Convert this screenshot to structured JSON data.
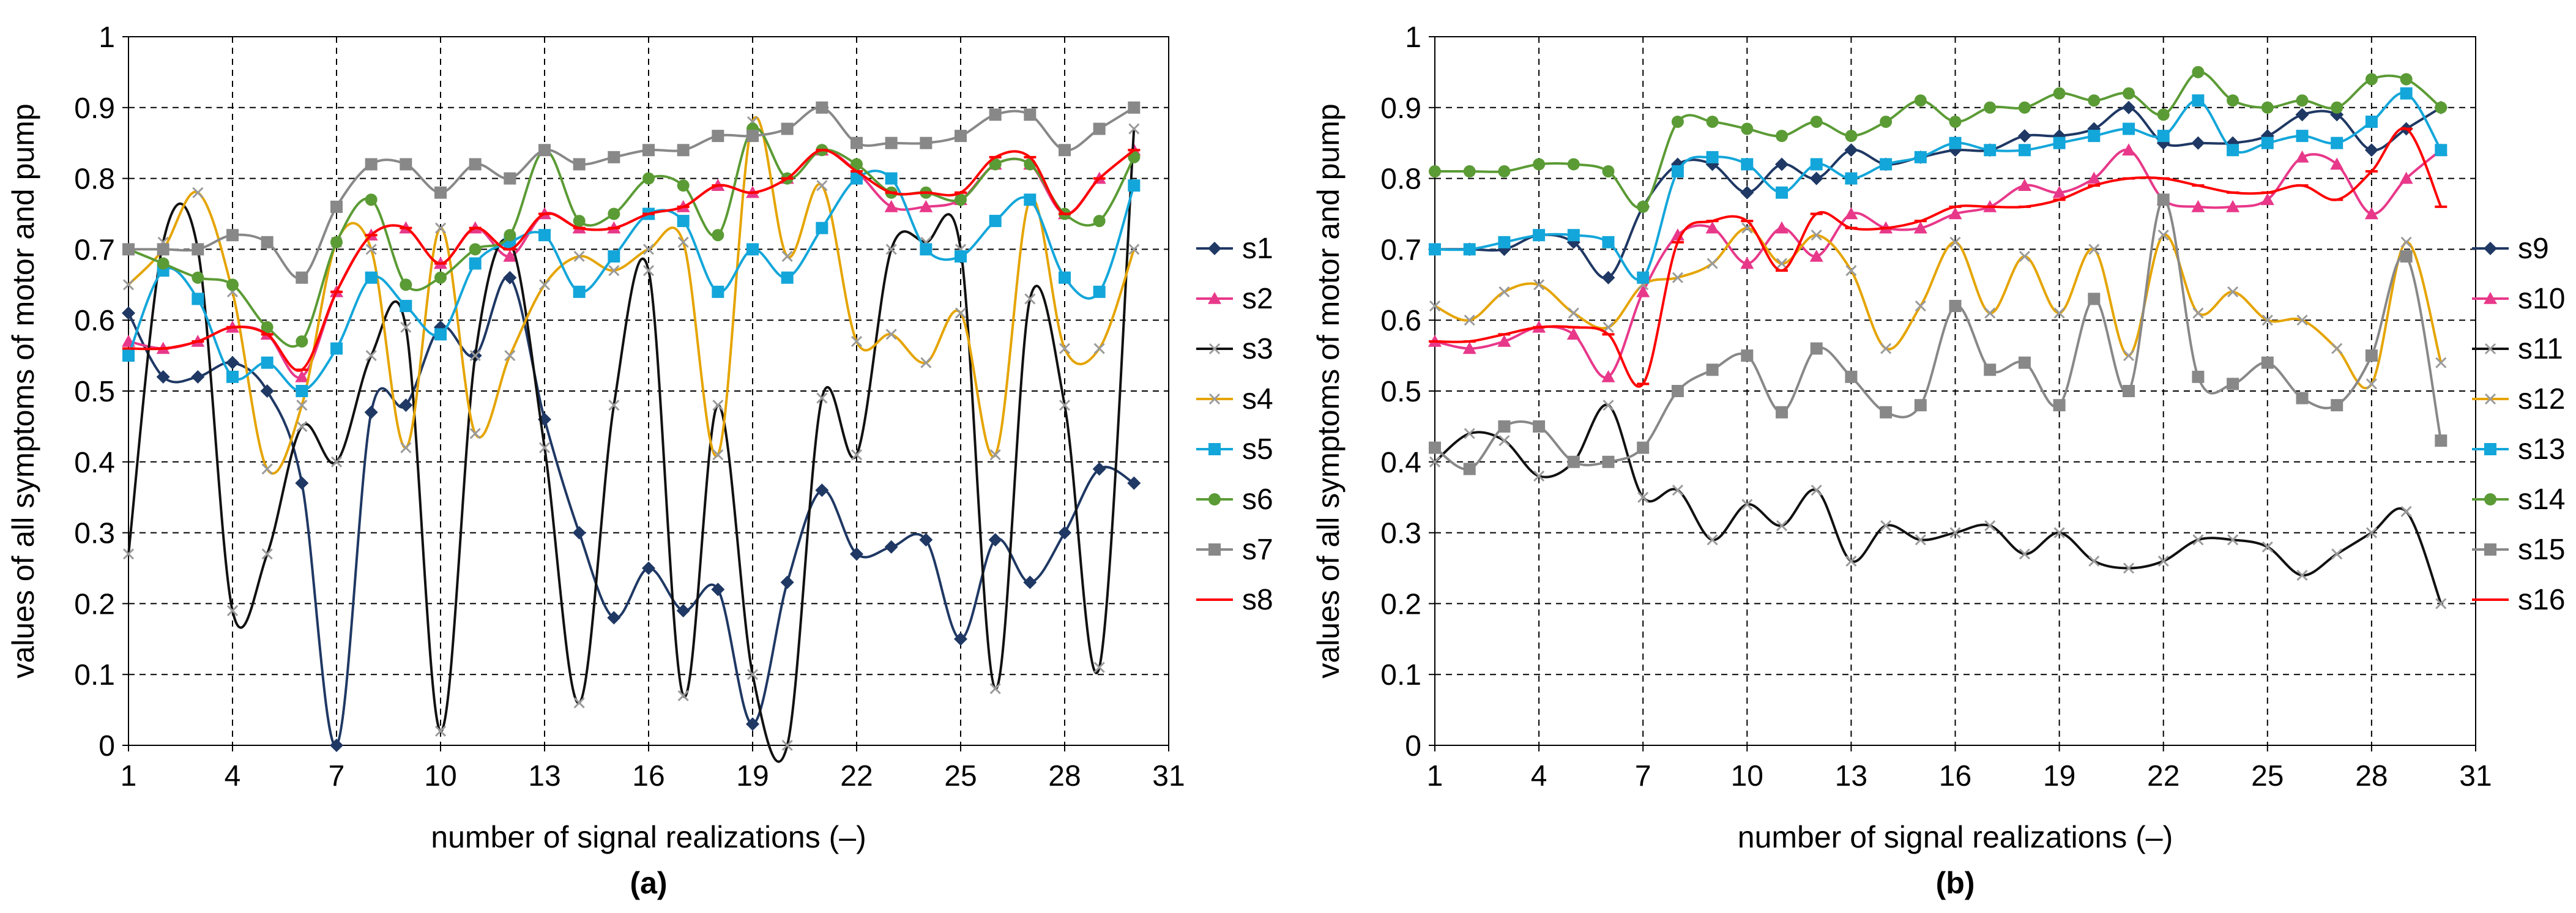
{
  "chart_data": [
    {
      "type": "line",
      "panel": "(a)",
      "xlabel": "number of signal realizations (–)",
      "ylabel": "values of all symptoms of motor and pump",
      "xlim": [
        1,
        31
      ],
      "ylim": [
        0,
        1
      ],
      "xticks": [
        1,
        4,
        7,
        10,
        13,
        16,
        19,
        22,
        25,
        28,
        31
      ],
      "yticks": [
        0,
        0.1,
        0.2,
        0.3,
        0.4,
        0.5,
        0.6,
        0.7,
        0.8,
        0.9,
        1
      ],
      "ytick_labels": [
        "0",
        "0.1",
        "0.2",
        "0.3",
        "0.4",
        "0.5",
        "0.6",
        "0.7",
        "0.8",
        "0.9",
        "1"
      ],
      "grid": true,
      "legend_position": "right",
      "x": [
        1,
        2,
        3,
        4,
        5,
        6,
        7,
        8,
        9,
        10,
        11,
        12,
        13,
        14,
        15,
        16,
        17,
        18,
        19,
        20,
        21,
        22,
        23,
        24,
        25,
        26,
        27,
        28,
        29,
        30
      ],
      "series": [
        {
          "name": "s1",
          "color": "#1F3864",
          "marker": "diamond",
          "values": [
            0.61,
            0.52,
            0.52,
            0.54,
            0.5,
            0.37,
            0.0,
            0.47,
            0.48,
            0.59,
            0.55,
            0.66,
            0.46,
            0.3,
            0.18,
            0.25,
            0.19,
            0.22,
            0.03,
            0.23,
            0.36,
            0.27,
            0.28,
            0.29,
            0.15,
            0.29,
            0.23,
            0.3,
            0.39,
            0.37
          ]
        },
        {
          "name": "s2",
          "color": "#E8388A",
          "marker": "triangle",
          "values": [
            0.57,
            0.56,
            0.57,
            0.59,
            0.58,
            0.52,
            0.64,
            0.72,
            0.73,
            0.68,
            0.73,
            0.69,
            0.75,
            0.73,
            0.73,
            0.75,
            0.76,
            0.79,
            0.78,
            0.8,
            0.84,
            0.81,
            0.76,
            0.76,
            0.77,
            0.82,
            0.82,
            0.75,
            0.8,
            0.84
          ]
        },
        {
          "name": "s3",
          "color": "#111111",
          "marker": "x",
          "values": [
            0.27,
            0.71,
            0.7,
            0.19,
            0.27,
            0.45,
            0.4,
            0.55,
            0.59,
            0.02,
            0.55,
            0.71,
            0.42,
            0.06,
            0.48,
            0.67,
            0.07,
            0.48,
            0.1,
            0.0,
            0.49,
            0.41,
            0.7,
            0.71,
            0.7,
            0.08,
            0.63,
            0.48,
            0.11,
            0.87
          ]
        },
        {
          "name": "s4",
          "color": "#E5A400",
          "marker": "x",
          "values": [
            0.65,
            0.7,
            0.78,
            0.64,
            0.39,
            0.48,
            0.71,
            0.7,
            0.42,
            0.73,
            0.44,
            0.55,
            0.65,
            0.69,
            0.67,
            0.7,
            0.71,
            0.41,
            0.88,
            0.69,
            0.79,
            0.57,
            0.58,
            0.54,
            0.61,
            0.41,
            0.77,
            0.56,
            0.56,
            0.7
          ]
        },
        {
          "name": "s5",
          "color": "#13A6DA",
          "marker": "square",
          "values": [
            0.55,
            0.67,
            0.63,
            0.52,
            0.54,
            0.5,
            0.56,
            0.66,
            0.62,
            0.58,
            0.68,
            0.71,
            0.72,
            0.64,
            0.69,
            0.75,
            0.74,
            0.64,
            0.7,
            0.66,
            0.73,
            0.8,
            0.8,
            0.7,
            0.69,
            0.74,
            0.77,
            0.66,
            0.64,
            0.79
          ]
        },
        {
          "name": "s6",
          "color": "#5B9B35",
          "marker": "circle",
          "values": [
            0.7,
            0.68,
            0.66,
            0.65,
            0.59,
            0.57,
            0.71,
            0.77,
            0.65,
            0.66,
            0.7,
            0.72,
            0.84,
            0.74,
            0.75,
            0.8,
            0.79,
            0.72,
            0.87,
            0.8,
            0.84,
            0.82,
            0.78,
            0.78,
            0.77,
            0.82,
            0.82,
            0.75,
            0.74,
            0.83
          ]
        },
        {
          "name": "s7",
          "color": "#888888",
          "marker": "square",
          "values": [
            0.7,
            0.7,
            0.7,
            0.72,
            0.71,
            0.66,
            0.76,
            0.82,
            0.82,
            0.78,
            0.82,
            0.8,
            0.84,
            0.82,
            0.83,
            0.84,
            0.84,
            0.86,
            0.86,
            0.87,
            0.9,
            0.85,
            0.85,
            0.85,
            0.86,
            0.89,
            0.89,
            0.84,
            0.87,
            0.9
          ]
        },
        {
          "name": "s8",
          "color": "#FF0000",
          "marker": "dash",
          "values": [
            0.56,
            0.56,
            0.57,
            0.59,
            0.58,
            0.53,
            0.64,
            0.72,
            0.73,
            0.68,
            0.73,
            0.7,
            0.75,
            0.73,
            0.73,
            0.75,
            0.76,
            0.79,
            0.78,
            0.8,
            0.84,
            0.81,
            0.78,
            0.78,
            0.78,
            0.83,
            0.83,
            0.75,
            0.8,
            0.84
          ]
        }
      ]
    },
    {
      "type": "line",
      "panel": "(b)",
      "xlabel": "number of signal realizations (–)",
      "ylabel": "values of all symptoms of motor and pump",
      "xlim": [
        1,
        31
      ],
      "ylim": [
        0,
        1
      ],
      "xticks": [
        1,
        4,
        7,
        10,
        13,
        16,
        19,
        22,
        25,
        28,
        31
      ],
      "yticks": [
        0,
        0.1,
        0.2,
        0.3,
        0.4,
        0.5,
        0.6,
        0.7,
        0.8,
        0.9,
        1
      ],
      "ytick_labels": [
        "0",
        "0.1",
        "0.2",
        "0.3",
        "0.4",
        "0.5",
        "0.6",
        "0.7",
        "0.8",
        "0.9",
        "1"
      ],
      "grid": true,
      "legend_position": "right",
      "x": [
        1,
        2,
        3,
        4,
        5,
        6,
        7,
        8,
        9,
        10,
        11,
        12,
        13,
        14,
        15,
        16,
        17,
        18,
        19,
        20,
        21,
        22,
        23,
        24,
        25,
        26,
        27,
        28,
        29,
        30
      ],
      "series": [
        {
          "name": "s9",
          "color": "#1F3864",
          "marker": "diamond",
          "values": [
            0.7,
            0.7,
            0.7,
            0.72,
            0.71,
            0.66,
            0.76,
            0.82,
            0.82,
            0.78,
            0.82,
            0.8,
            0.84,
            0.82,
            0.83,
            0.84,
            0.84,
            0.86,
            0.86,
            0.87,
            0.9,
            0.85,
            0.85,
            0.85,
            0.86,
            0.89,
            0.89,
            0.84,
            0.87,
            0.9
          ]
        },
        {
          "name": "s10",
          "color": "#E8388A",
          "marker": "triangle",
          "values": [
            0.57,
            0.56,
            0.57,
            0.59,
            0.58,
            0.52,
            0.64,
            0.72,
            0.73,
            0.68,
            0.73,
            0.69,
            0.75,
            0.73,
            0.73,
            0.75,
            0.76,
            0.79,
            0.78,
            0.8,
            0.84,
            0.77,
            0.76,
            0.76,
            0.77,
            0.83,
            0.82,
            0.75,
            0.8,
            0.84
          ]
        },
        {
          "name": "s11",
          "color": "#111111",
          "marker": "x",
          "values": [
            0.4,
            0.44,
            0.43,
            0.38,
            0.4,
            0.48,
            0.35,
            0.36,
            0.29,
            0.34,
            0.31,
            0.36,
            0.26,
            0.31,
            0.29,
            0.3,
            0.31,
            0.27,
            0.3,
            0.26,
            0.25,
            0.26,
            0.29,
            0.29,
            0.28,
            0.24,
            0.27,
            0.3,
            0.33,
            0.2
          ]
        },
        {
          "name": "s12",
          "color": "#E5A400",
          "marker": "x",
          "values": [
            0.62,
            0.6,
            0.64,
            0.65,
            0.61,
            0.59,
            0.65,
            0.66,
            0.68,
            0.73,
            0.68,
            0.72,
            0.67,
            0.56,
            0.62,
            0.71,
            0.61,
            0.69,
            0.61,
            0.7,
            0.55,
            0.72,
            0.61,
            0.64,
            0.6,
            0.6,
            0.56,
            0.51,
            0.71,
            0.54
          ]
        },
        {
          "name": "s13",
          "color": "#13A6DA",
          "marker": "square",
          "values": [
            0.7,
            0.7,
            0.71,
            0.72,
            0.72,
            0.71,
            0.66,
            0.81,
            0.83,
            0.82,
            0.78,
            0.82,
            0.8,
            0.82,
            0.83,
            0.85,
            0.84,
            0.84,
            0.85,
            0.86,
            0.87,
            0.86,
            0.91,
            0.84,
            0.85,
            0.86,
            0.85,
            0.88,
            0.92,
            0.84
          ]
        },
        {
          "name": "s14",
          "color": "#5B9B35",
          "marker": "circle",
          "values": [
            0.81,
            0.81,
            0.81,
            0.82,
            0.82,
            0.81,
            0.76,
            0.88,
            0.88,
            0.87,
            0.86,
            0.88,
            0.86,
            0.88,
            0.91,
            0.88,
            0.9,
            0.9,
            0.92,
            0.91,
            0.92,
            0.89,
            0.95,
            0.91,
            0.9,
            0.91,
            0.9,
            0.94,
            0.94,
            0.9
          ]
        },
        {
          "name": "s15",
          "color": "#888888",
          "marker": "square",
          "values": [
            0.42,
            0.39,
            0.45,
            0.45,
            0.4,
            0.4,
            0.42,
            0.5,
            0.53,
            0.55,
            0.47,
            0.56,
            0.52,
            0.47,
            0.48,
            0.62,
            0.53,
            0.54,
            0.48,
            0.63,
            0.5,
            0.77,
            0.52,
            0.51,
            0.54,
            0.49,
            0.48,
            0.55,
            0.69,
            0.43
          ]
        },
        {
          "name": "s16",
          "color": "#FF0000",
          "marker": "dash",
          "values": [
            0.57,
            0.57,
            0.58,
            0.59,
            0.59,
            0.58,
            0.51,
            0.71,
            0.74,
            0.74,
            0.67,
            0.75,
            0.73,
            0.73,
            0.74,
            0.76,
            0.76,
            0.76,
            0.77,
            0.79,
            0.8,
            0.8,
            0.79,
            0.78,
            0.78,
            0.79,
            0.77,
            0.81,
            0.87,
            0.76
          ]
        }
      ]
    }
  ]
}
